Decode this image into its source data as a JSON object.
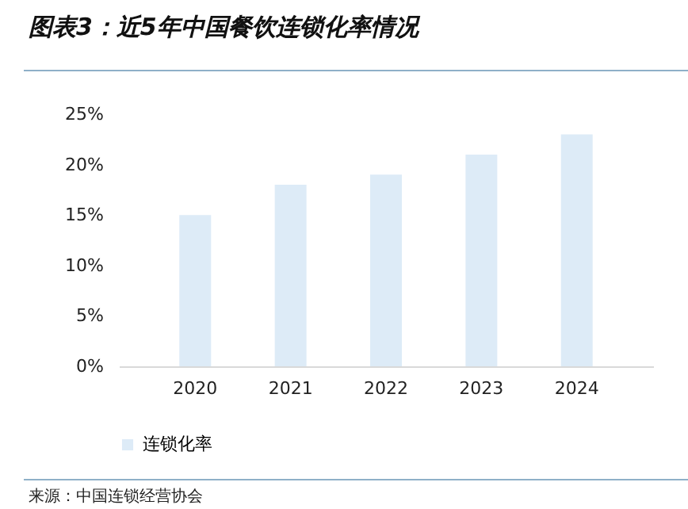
{
  "chart_data": {
    "type": "bar",
    "title": "图表3：近5年中国餐饮连锁化率情况",
    "categories": [
      "2020",
      "2021",
      "2022",
      "2023",
      "2024"
    ],
    "series": [
      {
        "name": "连锁化率",
        "color": "#ddebf7",
        "values": [
          15,
          18,
          19,
          21,
          23
        ]
      }
    ],
    "ylim": [
      0,
      25
    ],
    "yticks": [
      {
        "value": 0,
        "label": "0%"
      },
      {
        "value": 5,
        "label": "5%"
      },
      {
        "value": 10,
        "label": "10%"
      },
      {
        "value": 15,
        "label": "15%"
      },
      {
        "value": 20,
        "label": "20%"
      },
      {
        "value": 25,
        "label": "25%"
      }
    ],
    "legend": "bottom",
    "grid": false,
    "annotations": [
      "来源：中国连锁经营协会"
    ]
  }
}
